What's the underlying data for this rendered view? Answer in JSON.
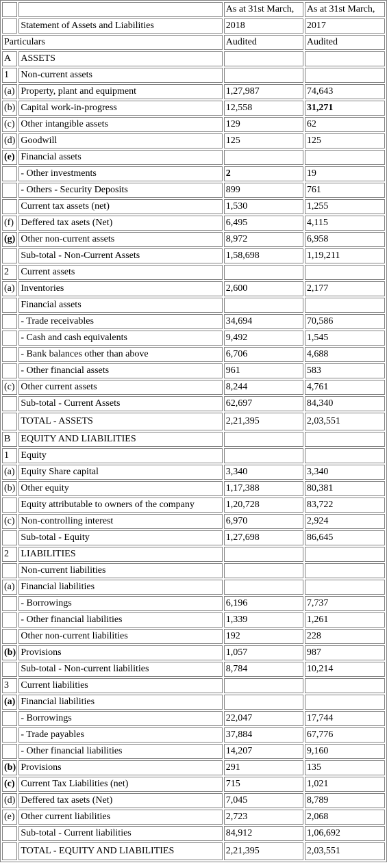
{
  "header": {
    "top": [
      "",
      "",
      "As at 31st March,",
      "As at 31st March,"
    ],
    "statement": [
      "",
      "Statement of Assets and Liabilities",
      "2018",
      "2017"
    ],
    "particulars": [
      "Particulars",
      "Audited",
      "Audited"
    ]
  },
  "rows": [
    {
      "idx": "A",
      "label": "ASSETS",
      "v1": "",
      "v2": ""
    },
    {
      "idx": "1",
      "label": "Non-current assets",
      "v1": "",
      "v2": ""
    },
    {
      "idx": "(a)",
      "label": "Property, plant and equipment",
      "v1": "1,27,987",
      "v2": "74,643"
    },
    {
      "idx": "(b)",
      "label": "Capital work-in-progress",
      "v1": "12,558",
      "v2": "31,271",
      "v2_bold": true
    },
    {
      "idx": "(c)",
      "label": "Other intangible assets",
      "v1": "129",
      "v2": "62"
    },
    {
      "idx": "(d)",
      "label": "Goodwill",
      "v1": "125",
      "v2": "125"
    },
    {
      "idx": "(e)",
      "idx_bold": true,
      "label": "Financial assets",
      "v1": "",
      "v2": ""
    },
    {
      "idx": "",
      "label": "- Other investments",
      "v1": "2",
      "v1_bold": true,
      "v2": "19"
    },
    {
      "idx": "",
      "label": "- Others - Security Deposits",
      "v1": "899",
      "v2": "761"
    },
    {
      "idx": "",
      "label": "Current tax assets (net)",
      "v1": "1,530",
      "v2": "1,255"
    },
    {
      "idx": "(f)",
      "label": "Deffered tax asets (Net)",
      "v1": "6,495",
      "v2": "4,115"
    },
    {
      "idx": "(g)",
      "idx_bold": true,
      "label": "Other non-current assets",
      "v1": "8,972",
      "v2": "6,958"
    },
    {
      "idx": "",
      "label": "Sub-total - Non-Current Assets",
      "v1": "1,58,698",
      "v2": "1,19,211"
    },
    {
      "idx": "2",
      "label": "Current assets",
      "v1": "",
      "v2": ""
    },
    {
      "idx": "(a)",
      "label": "Inventories",
      "v1": "2,600",
      "v2": "2,177"
    },
    {
      "idx": "",
      "label": "Financial assets",
      "v1": "",
      "v2": ""
    },
    {
      "idx": "",
      "label": "- Trade receivables",
      "v1": "34,694",
      "v2": "70,586"
    },
    {
      "idx": "",
      "label": "- Cash and cash equivalents",
      "v1": "9,492",
      "v2": "1,545"
    },
    {
      "idx": "",
      "label": "- Bank balances other than above",
      "v1": "6,706",
      "v2": "4,688"
    },
    {
      "idx": "",
      "label": "- Other financial assets",
      "v1": "961",
      "v2": "583"
    },
    {
      "idx": "(c)",
      "label": "Other current assets",
      "v1": "8,244",
      "v2": "4,761"
    },
    {
      "idx": "",
      "label": "Sub-total - Current Assets",
      "v1": "62,697",
      "v2": "84,340"
    },
    {
      "idx": "",
      "label": "TOTAL - ASSETS",
      "v1": "2,21,395",
      "v2": "2,03,551",
      "tall": true
    },
    {
      "idx": "B",
      "label": "EQUITY AND LIABILITIES",
      "v1": "",
      "v2": ""
    },
    {
      "idx": "1",
      "label": "Equity",
      "v1": "",
      "v2": ""
    },
    {
      "idx": "(a)",
      "label": "Equity Share capital",
      "v1": "3,340",
      "v2": "3,340"
    },
    {
      "idx": "(b)",
      "label": "Other equity",
      "v1": "1,17,388",
      "v2": "80,381"
    },
    {
      "idx": "",
      "label": "Equity attributable to owners of the company",
      "v1": "1,20,728",
      "v2": "83,722"
    },
    {
      "idx": "(c)",
      "label": "Non-controlling interest",
      "v1": "6,970",
      "v2": "2,924"
    },
    {
      "idx": "",
      "label": "Sub-total - Equity",
      "v1": "1,27,698",
      "v2": "86,645"
    },
    {
      "idx": "2",
      "label": "LIABILITIES",
      "v1": "",
      "v2": ""
    },
    {
      "idx": "",
      "label": "Non-current liabilities",
      "v1": "",
      "v2": ""
    },
    {
      "idx": "(a)",
      "label": "Financial liabilities",
      "v1": "",
      "v2": ""
    },
    {
      "idx": "",
      "label": "- Borrowings",
      "v1": "6,196",
      "v2": "7,737"
    },
    {
      "idx": "",
      "label": "- Other financial liabilities",
      "v1": "1,339",
      "v2": "1,261"
    },
    {
      "idx": "",
      "label": "Other non-current liabilities",
      "v1": "192",
      "v2": "228"
    },
    {
      "idx": "(b)",
      "idx_bold": true,
      "label": "Provisions",
      "v1": "1,057",
      "v2": "987"
    },
    {
      "idx": "",
      "label": "Sub-total - Non-current liabilities",
      "v1": "8,784",
      "v2": "10,214"
    },
    {
      "idx": "3",
      "label": "Current liabilities",
      "v1": "",
      "v2": ""
    },
    {
      "idx": "(a)",
      "idx_bold": true,
      "label": "Financial liabilities",
      "v1": "",
      "v2": ""
    },
    {
      "idx": "",
      "label": "- Borrowings",
      "v1": "22,047",
      "v2": "17,744"
    },
    {
      "idx": "",
      "label": "- Trade payables",
      "v1": "37,884",
      "v2": "67,776"
    },
    {
      "idx": "",
      "label": "- Other financial liabilities",
      "v1": "14,207",
      "v2": "9,160"
    },
    {
      "idx": "(b)",
      "idx_bold": true,
      "label": "Provisions",
      "v1": "291",
      "v2": "135"
    },
    {
      "idx": "(c)",
      "idx_bold": true,
      "label": "Current Tax Liabilities (net)",
      "v1": "715",
      "v2": "1,021"
    },
    {
      "idx": "(d)",
      "label": "Deffered tax asets (Net)",
      "v1": "7,045",
      "v2": "8,789"
    },
    {
      "idx": "(e)",
      "label": "Other current liabilities",
      "v1": "2,723",
      "v2": "2,068"
    },
    {
      "idx": "",
      "label": "Sub-total - Current liabilities",
      "v1": "84,912",
      "v2": "1,06,692"
    },
    {
      "idx": "",
      "label": "TOTAL - EQUITY AND LIABILITIES",
      "v1": "2,21,395",
      "v2": "2,03,551",
      "tall": true
    }
  ]
}
